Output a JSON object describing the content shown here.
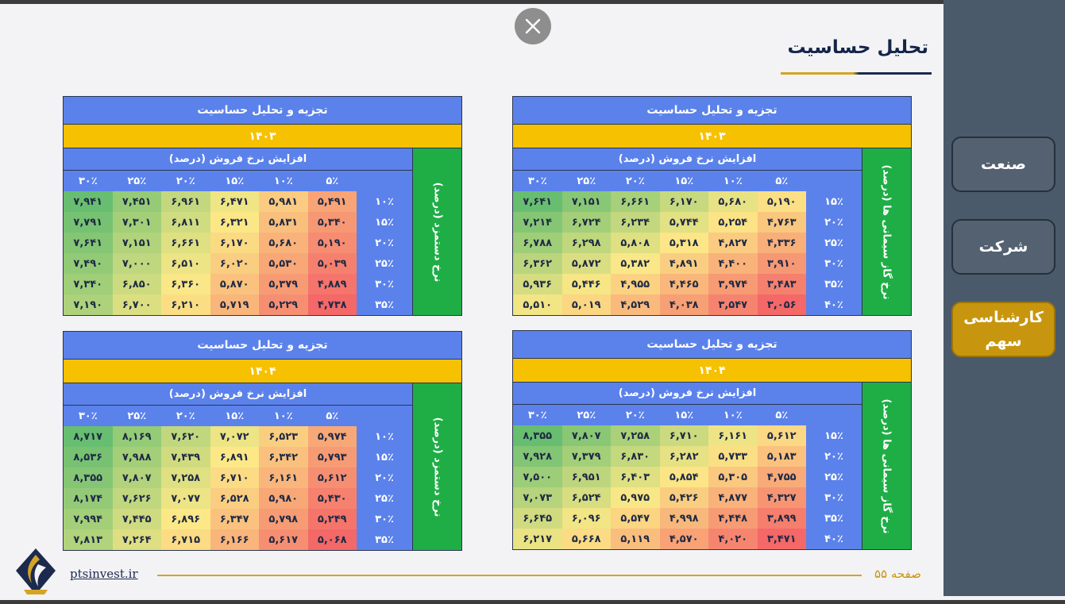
{
  "title": "تحلیل حساسیت",
  "sidebar": {
    "items": [
      {
        "label": "صنعت",
        "active": false
      },
      {
        "label": "شرکت",
        "active": false
      },
      {
        "label": "کارشناسی سهم",
        "active": true
      }
    ]
  },
  "footer": {
    "url": "ptsinvest.ir",
    "page": "صفحه ۵۵"
  },
  "colors": {
    "header_blue": "#5b82eb",
    "year_yellow": "#f6c100",
    "side_green": "#1fae46",
    "accent_gold": "#c8960e"
  },
  "icons": {
    "close": "close-icon",
    "logo": "company-logo"
  },
  "tables": [
    {
      "id": "gas-1403",
      "header": "تجزیه و تحلیل حساسیت",
      "year": "۱۴۰۳",
      "sub_header": "افزایش نرخ فروش (درصد)",
      "side_label": "نرخ گاز سیمانی ها (درصد)",
      "columns": [
        "۳۰٪",
        "۲۵٪",
        "۲۰٪",
        "۱۵٪",
        "۱۰٪",
        "۵٪"
      ],
      "rows": [
        {
          "label": "۱۵٪",
          "values": [
            "۷,۶۴۱",
            "۷,۱۵۱",
            "۶,۶۶۱",
            "۶,۱۷۰",
            "۵,۶۸۰",
            "۵,۱۹۰"
          ]
        },
        {
          "label": "۲۰٪",
          "values": [
            "۷,۲۱۴",
            "۶,۷۲۴",
            "۶,۲۳۴",
            "۵,۷۴۴",
            "۵,۲۵۴",
            "۴,۷۶۳"
          ]
        },
        {
          "label": "۲۵٪",
          "values": [
            "۶,۷۸۸",
            "۶,۲۹۸",
            "۵,۸۰۸",
            "۵,۳۱۸",
            "۴,۸۲۷",
            "۴,۳۳۶"
          ]
        },
        {
          "label": "۳۰٪",
          "values": [
            "۶,۳۶۲",
            "۵,۸۷۲",
            "۵,۳۸۲",
            "۴,۸۹۱",
            "۴,۴۰۰",
            "۳,۹۱۰"
          ]
        },
        {
          "label": "۳۵٪",
          "values": [
            "۵,۹۳۶",
            "۵,۴۴۶",
            "۴,۹۵۵",
            "۴,۴۶۵",
            "۳,۹۷۴",
            "۳,۴۸۳"
          ]
        },
        {
          "label": "۴۰٪",
          "values": [
            "۵,۵۱۰",
            "۵,۰۱۹",
            "۴,۵۲۹",
            "۴,۰۳۸",
            "۳,۵۴۷",
            "۳,۰۵۶"
          ]
        }
      ],
      "numeric": [
        [
          7641,
          7151,
          6661,
          6170,
          5680,
          5190
        ],
        [
          7214,
          6724,
          6234,
          5744,
          5254,
          4763
        ],
        [
          6788,
          6298,
          5808,
          5318,
          4827,
          4336
        ],
        [
          6362,
          5872,
          5382,
          4891,
          4400,
          3910
        ],
        [
          5936,
          5446,
          4955,
          4465,
          3974,
          3483
        ],
        [
          5510,
          5019,
          4529,
          4038,
          3547,
          3056
        ]
      ]
    },
    {
      "id": "rate-1403",
      "header": "تجزیه و تحلیل حساسیت",
      "year": "۱۴۰۳",
      "sub_header": "افزایش نرخ فروش (درصد)",
      "side_label": "نرخ دستمزد (درصد)",
      "columns": [
        "۳۰٪",
        "۲۵٪",
        "۲۰٪",
        "۱۵٪",
        "۱۰٪",
        "۵٪"
      ],
      "rows": [
        {
          "label": "۱۰٪",
          "values": [
            "۷,۹۴۱",
            "۷,۴۵۱",
            "۶,۹۶۱",
            "۶,۴۷۱",
            "۵,۹۸۱",
            "۵,۴۹۱"
          ]
        },
        {
          "label": "۱۵٪",
          "values": [
            "۷,۷۹۱",
            "۷,۳۰۱",
            "۶,۸۱۱",
            "۶,۳۲۱",
            "۵,۸۳۱",
            "۵,۳۴۰"
          ]
        },
        {
          "label": "۲۰٪",
          "values": [
            "۷,۶۴۱",
            "۷,۱۵۱",
            "۶,۶۶۱",
            "۶,۱۷۰",
            "۵,۶۸۰",
            "۵,۱۹۰"
          ]
        },
        {
          "label": "۲۵٪",
          "values": [
            "۷,۴۹۰",
            "۷,۰۰۰",
            "۶,۵۱۰",
            "۶,۰۲۰",
            "۵,۵۳۰",
            "۵,۰۳۹"
          ]
        },
        {
          "label": "۳۰٪",
          "values": [
            "۷,۳۴۰",
            "۶,۸۵۰",
            "۶,۳۶۰",
            "۵,۸۷۰",
            "۵,۳۷۹",
            "۴,۸۸۹"
          ]
        },
        {
          "label": "۳۵٪",
          "values": [
            "۷,۱۹۰",
            "۶,۷۰۰",
            "۶,۲۱۰",
            "۵,۷۱۹",
            "۵,۲۲۹",
            "۴,۷۳۸"
          ]
        }
      ],
      "numeric": [
        [
          7941,
          7451,
          6961,
          6471,
          5981,
          5491
        ],
        [
          7791,
          7301,
          6811,
          6321,
          5831,
          5340
        ],
        [
          7641,
          7151,
          6661,
          6170,
          5680,
          5190
        ],
        [
          7490,
          7000,
          6510,
          6020,
          5530,
          5039
        ],
        [
          7340,
          6850,
          6360,
          5870,
          5379,
          4889
        ],
        [
          7190,
          6700,
          6210,
          5719,
          5229,
          4738
        ]
      ]
    },
    {
      "id": "gas-1404",
      "header": "تجزیه و تحلیل حساسیت",
      "year": "۱۴۰۴",
      "sub_header": "افزایش نرخ فروش (درصد)",
      "side_label": "نرخ گاز سیمانی ها (درصد)",
      "columns": [
        "۳۰٪",
        "۲۵٪",
        "۲۰٪",
        "۱۵٪",
        "۱۰٪",
        "۵٪"
      ],
      "rows": [
        {
          "label": "۱۵٪",
          "values": [
            "۸,۳۵۵",
            "۷,۸۰۷",
            "۷,۲۵۸",
            "۶,۷۱۰",
            "۶,۱۶۱",
            "۵,۶۱۲"
          ]
        },
        {
          "label": "۲۰٪",
          "values": [
            "۷,۹۲۸",
            "۷,۳۷۹",
            "۶,۸۳۰",
            "۶,۲۸۲",
            "۵,۷۳۳",
            "۵,۱۸۳"
          ]
        },
        {
          "label": "۲۵٪",
          "values": [
            "۷,۵۰۰",
            "۶,۹۵۱",
            "۶,۴۰۳",
            "۵,۸۵۴",
            "۵,۳۰۵",
            "۴,۷۵۵"
          ]
        },
        {
          "label": "۳۰٪",
          "values": [
            "۷,۰۷۳",
            "۶,۵۲۴",
            "۵,۹۷۵",
            "۵,۴۲۶",
            "۴,۸۷۷",
            "۴,۳۲۷"
          ]
        },
        {
          "label": "۳۵٪",
          "values": [
            "۶,۶۴۵",
            "۶,۰۹۶",
            "۵,۵۴۷",
            "۴,۹۹۸",
            "۴,۴۴۸",
            "۳,۸۹۹"
          ]
        },
        {
          "label": "۴۰٪",
          "values": [
            "۶,۲۱۷",
            "۵,۶۶۸",
            "۵,۱۱۹",
            "۴,۵۷۰",
            "۴,۰۲۰",
            "۳,۴۷۱"
          ]
        }
      ],
      "numeric": [
        [
          8355,
          7807,
          7258,
          6710,
          6161,
          5612
        ],
        [
          7928,
          7379,
          6830,
          6282,
          5733,
          5183
        ],
        [
          7500,
          6951,
          6403,
          5854,
          5305,
          4755
        ],
        [
          7073,
          6524,
          5975,
          5426,
          4877,
          4327
        ],
        [
          6645,
          6096,
          5547,
          4998,
          4448,
          3899
        ],
        [
          6217,
          5668,
          5119,
          4570,
          4020,
          3471
        ]
      ]
    },
    {
      "id": "rate-1404",
      "header": "تجزیه و تحلیل حساسیت",
      "year": "۱۴۰۴",
      "sub_header": "افزایش نرخ فروش (درصد)",
      "side_label": "نرخ دستمزد (درصد)",
      "columns": [
        "۳۰٪",
        "۲۵٪",
        "۲۰٪",
        "۱۵٪",
        "۱۰٪",
        "۵٪"
      ],
      "rows": [
        {
          "label": "۱۰٪",
          "values": [
            "۸,۷۱۷",
            "۸,۱۶۹",
            "۷,۶۲۰",
            "۷,۰۷۲",
            "۶,۵۲۳",
            "۵,۹۷۴"
          ]
        },
        {
          "label": "۱۵٪",
          "values": [
            "۸,۵۳۶",
            "۷,۹۸۸",
            "۷,۴۳۹",
            "۶,۸۹۱",
            "۶,۳۴۲",
            "۵,۷۹۳"
          ]
        },
        {
          "label": "۲۰٪",
          "values": [
            "۸,۳۵۵",
            "۷,۸۰۷",
            "۷,۲۵۸",
            "۶,۷۱۰",
            "۶,۱۶۱",
            "۵,۶۱۲"
          ]
        },
        {
          "label": "۲۵٪",
          "values": [
            "۸,۱۷۴",
            "۷,۶۲۶",
            "۷,۰۷۷",
            "۶,۵۲۸",
            "۵,۹۸۰",
            "۵,۴۳۰"
          ]
        },
        {
          "label": "۳۰٪",
          "values": [
            "۷,۹۹۴",
            "۷,۴۴۵",
            "۶,۸۹۶",
            "۶,۳۴۷",
            "۵,۷۹۸",
            "۵,۲۴۹"
          ]
        },
        {
          "label": "۳۵٪",
          "values": [
            "۷,۸۱۳",
            "۷,۲۶۴",
            "۶,۷۱۵",
            "۶,۱۶۶",
            "۵,۶۱۷",
            "۵,۰۶۸"
          ]
        }
      ],
      "numeric": [
        [
          8717,
          8169,
          7620,
          7072,
          6523,
          5974
        ],
        [
          8536,
          7988,
          7439,
          6891,
          6342,
          5793
        ],
        [
          8355,
          7807,
          7258,
          6710,
          6161,
          5612
        ],
        [
          8174,
          7626,
          7077,
          6528,
          5980,
          5430
        ],
        [
          7994,
          7445,
          6896,
          6347,
          5798,
          5249
        ],
        [
          7813,
          7264,
          6715,
          6166,
          5617,
          5068
        ]
      ]
    }
  ]
}
